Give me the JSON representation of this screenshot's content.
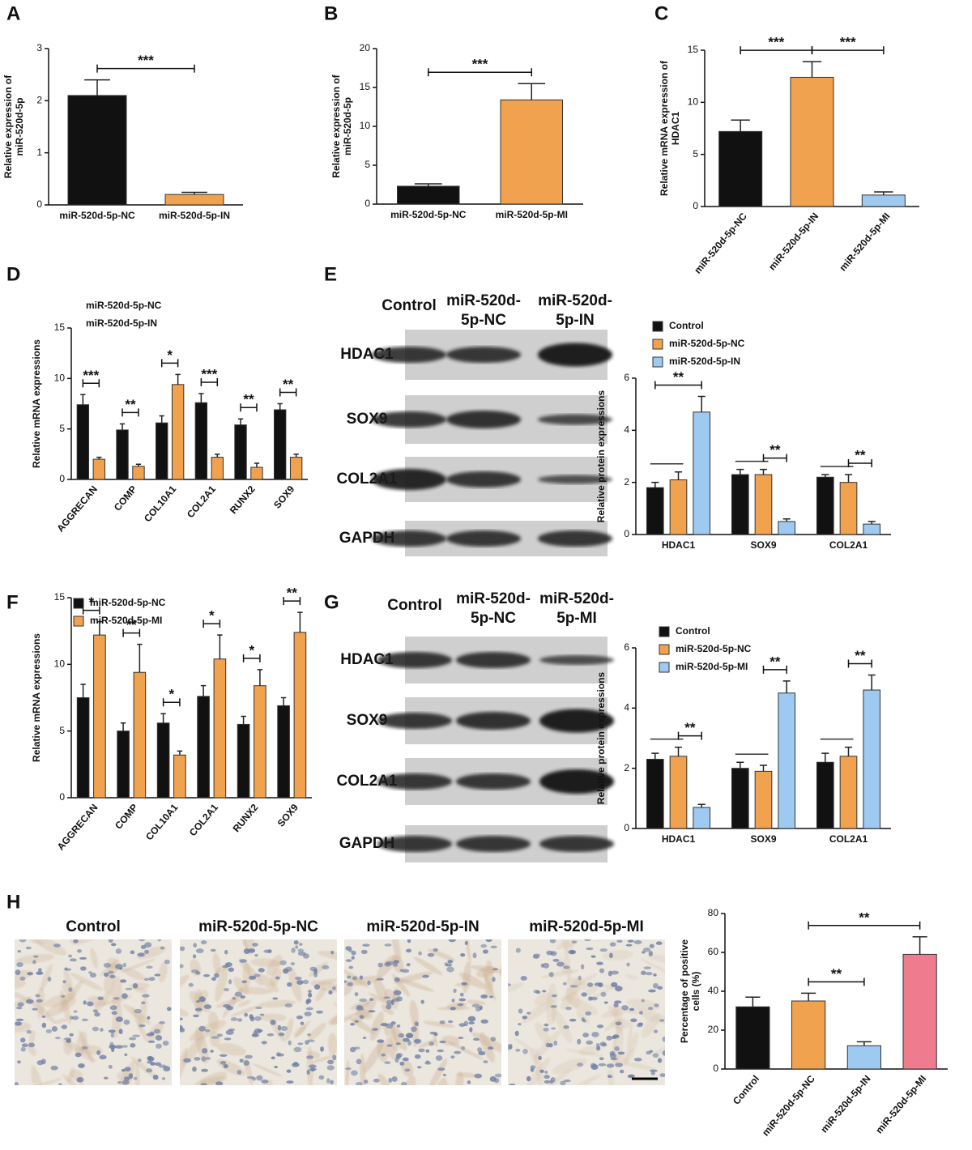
{
  "panels": [
    "A",
    "B",
    "C",
    "D",
    "E",
    "F",
    "G",
    "H"
  ],
  "blots": [
    {
      "columns": [
        [
          "Control"
        ],
        [
          "miR-520d-",
          "5p-NC"
        ],
        [
          "miR-520d-",
          "5p-IN"
        ]
      ],
      "rows": [
        "HDAC1",
        "SOX9",
        "COL2A1",
        "GAPDH"
      ]
    },
    {
      "columns": [
        [
          "Control"
        ],
        [
          "miR-520d-",
          "5p-NC"
        ],
        [
          "miR-520d-",
          "5p-MI"
        ]
      ],
      "rows": [
        "HDAC1",
        "SOX9",
        "COL2A1",
        "GAPDH"
      ]
    }
  ],
  "micrographs": {
    "labels": [
      "Control",
      "miR-520d-5p-NC",
      "miR-520d-5p-IN",
      "miR-520d-5p-MI"
    ]
  },
  "chart_data": [
    {
      "type": "bar",
      "y_label": [
        "Relative expression of",
        "miR-520d-5p"
      ],
      "categories": [
        "miR-520d-5p-NC",
        "miR-520d-5p-IN"
      ],
      "values": [
        2.1,
        0.2
      ],
      "errors": [
        0.3,
        0.04
      ],
      "colors": [
        "#111111",
        "#f0a24e"
      ],
      "ylim": [
        0,
        3
      ],
      "yticks": [
        0,
        1,
        2,
        3
      ],
      "annotations": [
        {
          "text": "***",
          "between": [
            "miR-520d-5p-NC",
            "miR-520d-5p-IN"
          ]
        }
      ]
    },
    {
      "type": "bar",
      "y_label": [
        "Relative expression of",
        "miR-520d-5p"
      ],
      "categories": [
        "miR-520d-5p-NC",
        "miR-520d-5p-MI"
      ],
      "values": [
        2.3,
        13.4
      ],
      "errors": [
        0.3,
        2.1
      ],
      "colors": [
        "#111111",
        "#f0a24e"
      ],
      "ylim": [
        0,
        20
      ],
      "yticks": [
        0,
        5,
        10,
        15,
        20
      ],
      "annotations": [
        {
          "text": "***",
          "between": [
            "miR-520d-5p-NC",
            "miR-520d-5p-MI"
          ]
        }
      ]
    },
    {
      "type": "bar",
      "y_label": [
        "Relative mRNA expression of",
        "HDAC1"
      ],
      "categories": [
        "miR-520d-5p-NC",
        "miR-520d-5p-IN",
        "miR-520d-5p-MI"
      ],
      "values": [
        7.2,
        12.4,
        1.1
      ],
      "errors": [
        1.1,
        1.5,
        0.3
      ],
      "colors": [
        "#111111",
        "#f0a24e",
        "#9ec9f0"
      ],
      "ylim": [
        0,
        15
      ],
      "yticks": [
        0,
        5,
        10,
        15
      ],
      "annotations": [
        {
          "text": "***",
          "between": [
            "miR-520d-5p-NC",
            "miR-520d-5p-IN"
          ]
        },
        {
          "text": "***",
          "between": [
            "miR-520d-5p-IN",
            "miR-520d-5p-MI"
          ]
        }
      ]
    },
    {
      "type": "bar",
      "y_label": [
        "Relative mRNA expressions"
      ],
      "categories": [
        "AGGRECAN",
        "COMP",
        "COL10A1",
        "COL2A1",
        "RUNX2",
        "SOX9"
      ],
      "series": [
        {
          "name": "miR-520d-5p-NC",
          "color": "#111111",
          "values": [
            7.4,
            4.9,
            5.6,
            7.6,
            5.4,
            6.9
          ],
          "errors": [
            1.0,
            0.6,
            0.7,
            0.9,
            0.6,
            0.6
          ]
        },
        {
          "name": "miR-520d-5p-IN",
          "color": "#f0a24e",
          "values": [
            2.0,
            1.3,
            9.4,
            2.2,
            1.2,
            2.2
          ],
          "errors": [
            0.2,
            0.2,
            1.0,
            0.3,
            0.4,
            0.3
          ]
        }
      ],
      "ylim": [
        0,
        15
      ],
      "yticks": [
        0,
        5,
        10,
        15
      ],
      "annotations": [
        {
          "text": "***",
          "category": "AGGRECAN",
          "between": [
            "miR-520d-5p-NC",
            "miR-520d-5p-IN"
          ]
        },
        {
          "text": "**",
          "category": "COMP",
          "between": [
            "miR-520d-5p-NC",
            "miR-520d-5p-IN"
          ]
        },
        {
          "text": "*",
          "category": "COL10A1",
          "between": [
            "miR-520d-5p-NC",
            "miR-520d-5p-IN"
          ]
        },
        {
          "text": "***",
          "category": "COL2A1",
          "between": [
            "miR-520d-5p-NC",
            "miR-520d-5p-IN"
          ]
        },
        {
          "text": "**",
          "category": "RUNX2",
          "between": [
            "miR-520d-5p-NC",
            "miR-520d-5p-IN"
          ]
        },
        {
          "text": "**",
          "category": "SOX9",
          "between": [
            "miR-520d-5p-NC",
            "miR-520d-5p-IN"
          ]
        }
      ]
    },
    {
      "type": "bar",
      "y_label": [
        "Relative protein expressions"
      ],
      "categories": [
        "HDAC1",
        "SOX9",
        "COL2A1"
      ],
      "series": [
        {
          "name": "Control",
          "color": "#111111",
          "values": [
            1.8,
            2.3,
            2.2
          ],
          "errors": [
            0.2,
            0.2,
            0.1
          ]
        },
        {
          "name": "miR-520d-5p-NC",
          "color": "#f0a24e",
          "values": [
            2.1,
            2.3,
            2.0
          ],
          "errors": [
            0.3,
            0.2,
            0.3
          ]
        },
        {
          "name": "miR-520d-5p-IN",
          "color": "#9ec9f0",
          "values": [
            4.7,
            0.5,
            0.4
          ],
          "errors": [
            0.6,
            0.1,
            0.1
          ]
        }
      ],
      "ylim": [
        0,
        6
      ],
      "yticks": [
        0,
        2,
        4,
        6
      ],
      "annotations": [
        {
          "category": "HDAC1",
          "between": [
            "Control",
            "miR-520d-5p-NC"
          ]
        },
        {
          "text": "**",
          "category": "HDAC1",
          "between": [
            "Control",
            "miR-520d-5p-IN"
          ]
        },
        {
          "category": "SOX9",
          "between": [
            "Control",
            "miR-520d-5p-NC"
          ]
        },
        {
          "text": "**",
          "category": "SOX9",
          "between": [
            "miR-520d-5p-NC",
            "miR-520d-5p-IN"
          ]
        },
        {
          "category": "COL2A1",
          "between": [
            "Control",
            "miR-520d-5p-NC"
          ]
        },
        {
          "text": "**",
          "category": "COL2A1",
          "between": [
            "miR-520d-5p-NC",
            "miR-520d-5p-IN"
          ]
        }
      ]
    },
    {
      "type": "bar",
      "y_label": [
        "Relative mRNA expressions"
      ],
      "categories": [
        "AGGRECAN",
        "COMP",
        "COL10A1",
        "COL2A1",
        "RUNX2",
        "SOX9"
      ],
      "series": [
        {
          "name": "miR-520d-5p-NC",
          "color": "#111111",
          "values": [
            7.5,
            5.0,
            5.6,
            7.6,
            5.5,
            6.9
          ],
          "errors": [
            1.0,
            0.6,
            0.7,
            0.8,
            0.6,
            0.6
          ]
        },
        {
          "name": "miR-520d-5p-MI",
          "color": "#f0a24e",
          "values": [
            12.2,
            9.4,
            3.2,
            10.4,
            8.4,
            12.4
          ],
          "errors": [
            1.0,
            2.1,
            0.3,
            1.8,
            1.2,
            1.5
          ]
        }
      ],
      "ylim": [
        0,
        15
      ],
      "yticks": [
        0,
        5,
        10,
        15
      ],
      "annotations": [
        {
          "text": "*",
          "category": "AGGRECAN",
          "between": [
            "miR-520d-5p-NC",
            "miR-520d-5p-MI"
          ]
        },
        {
          "text": "**",
          "category": "COMP",
          "between": [
            "miR-520d-5p-NC",
            "miR-520d-5p-MI"
          ]
        },
        {
          "text": "*",
          "category": "COL10A1",
          "between": [
            "miR-520d-5p-NC",
            "miR-520d-5p-MI"
          ]
        },
        {
          "text": "*",
          "category": "COL2A1",
          "between": [
            "miR-520d-5p-NC",
            "miR-520d-5p-MI"
          ]
        },
        {
          "text": "*",
          "category": "RUNX2",
          "between": [
            "miR-520d-5p-NC",
            "miR-520d-5p-MI"
          ]
        },
        {
          "text": "**",
          "category": "SOX9",
          "between": [
            "miR-520d-5p-NC",
            "miR-520d-5p-MI"
          ]
        }
      ]
    },
    {
      "type": "bar",
      "y_label": [
        "Relative protein expressions"
      ],
      "categories": [
        "HDAC1",
        "SOX9",
        "COL2A1"
      ],
      "series": [
        {
          "name": "Control",
          "color": "#111111",
          "values": [
            2.3,
            2.0,
            2.2
          ],
          "errors": [
            0.2,
            0.2,
            0.3
          ]
        },
        {
          "name": "miR-520d-5p-NC",
          "color": "#f0a24e",
          "values": [
            2.4,
            1.9,
            2.4
          ],
          "errors": [
            0.3,
            0.2,
            0.3
          ]
        },
        {
          "name": "miR-520d-5p-MI",
          "color": "#9ec9f0",
          "values": [
            0.7,
            4.5,
            4.6
          ],
          "errors": [
            0.1,
            0.4,
            0.5
          ]
        }
      ],
      "ylim": [
        0,
        6
      ],
      "yticks": [
        0,
        2,
        4,
        6
      ],
      "annotations": [
        {
          "category": "HDAC1",
          "between": [
            "Control",
            "miR-520d-5p-NC"
          ]
        },
        {
          "text": "**",
          "category": "HDAC1",
          "between": [
            "miR-520d-5p-NC",
            "miR-520d-5p-MI"
          ]
        },
        {
          "category": "SOX9",
          "between": [
            "Control",
            "miR-520d-5p-NC"
          ]
        },
        {
          "text": "**",
          "category": "SOX9",
          "between": [
            "miR-520d-5p-NC",
            "miR-520d-5p-MI"
          ]
        },
        {
          "category": "COL2A1",
          "between": [
            "Control",
            "miR-520d-5p-NC"
          ]
        },
        {
          "text": "**",
          "category": "COL2A1",
          "between": [
            "miR-520d-5p-NC",
            "miR-520d-5p-MI"
          ]
        }
      ]
    },
    {
      "type": "bar",
      "y_label": [
        "Percentage of positive",
        "cells (%)"
      ],
      "categories": [
        "Control",
        "miR-520d-5p-NC",
        "miR-520d-5p-IN",
        "miR-520d-5p-MI"
      ],
      "values": [
        32,
        35,
        12,
        59
      ],
      "errors": [
        5,
        4,
        2,
        9
      ],
      "colors": [
        "#111111",
        "#f0a24e",
        "#9ec9f0",
        "#ee7b8e"
      ],
      "ylim": [
        0,
        80
      ],
      "yticks": [
        0,
        20,
        40,
        60,
        80
      ],
      "annotations": [
        {
          "text": "**",
          "between": [
            "miR-520d-5p-NC",
            "miR-520d-5p-IN"
          ]
        },
        {
          "text": "**",
          "between": [
            "miR-520d-5p-NC",
            "miR-520d-5p-MI"
          ]
        }
      ]
    }
  ]
}
